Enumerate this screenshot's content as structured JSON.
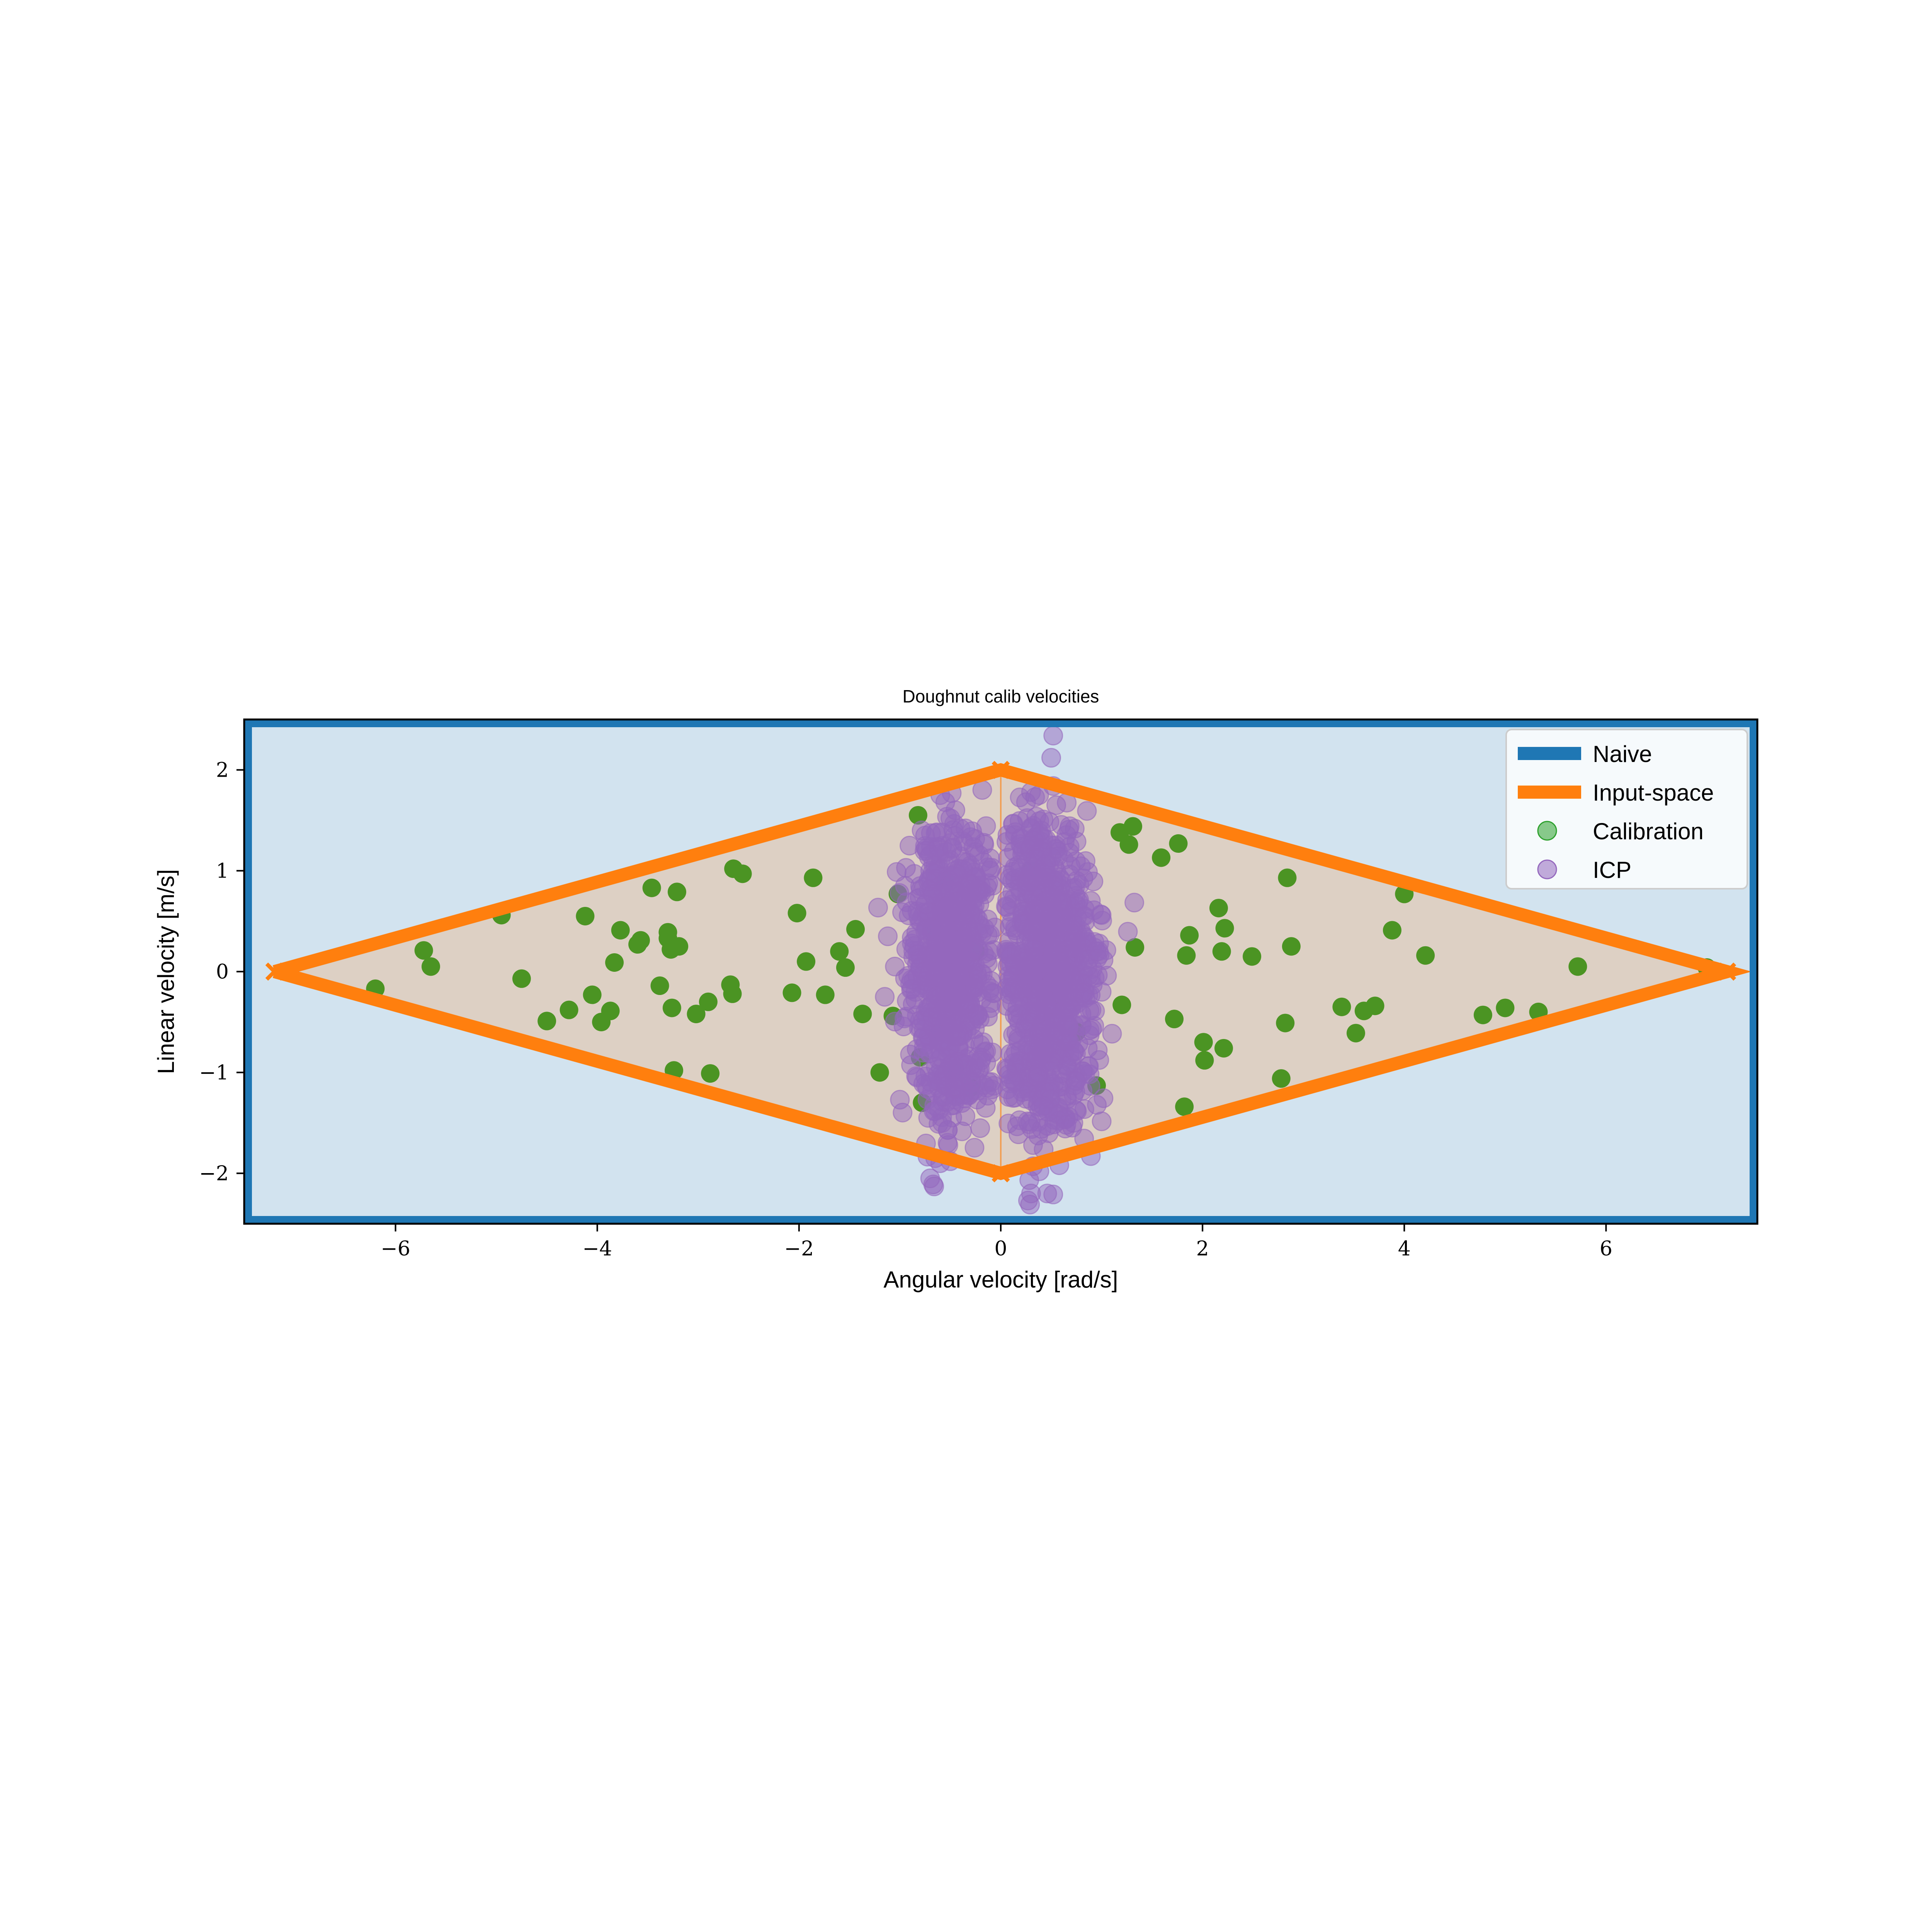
{
  "chart_data": {
    "type": "scatter",
    "title": "Doughnut calib velocities",
    "xlabel": "Angular velocity [rad/s]",
    "ylabel": "Linear velocity [m/s]",
    "xlim": [
      -7.5,
      7.5
    ],
    "ylim": [
      -2.5,
      2.5
    ],
    "xticks": [
      -6,
      -4,
      -2,
      0,
      2,
      4,
      6
    ],
    "xtick_labels": [
      "−6",
      "−4",
      "−2",
      "0",
      "2",
      "4",
      "6"
    ],
    "yticks": [
      -2,
      -1,
      0,
      1,
      2
    ],
    "ytick_labels": [
      "−2",
      "−1",
      "0",
      "1",
      "2"
    ],
    "grid": false,
    "legend_position": "top-right",
    "colors": {
      "naive": "#1f77b4",
      "naive_fill": "#d2e3ef",
      "input_space": "#ff7f0e",
      "input_fill": "#ddd0c4",
      "calibration": "#4b9423",
      "icp": "#9467bd",
      "icp_overlap": "#a56b9c"
    },
    "legend": [
      {
        "label": "Naive",
        "kind": "line",
        "color": "#1f77b4"
      },
      {
        "label": "Input-space",
        "kind": "line",
        "color": "#ff7f0e"
      },
      {
        "label": "Calibration",
        "kind": "marker",
        "color": "#2ca02c"
      },
      {
        "label": "ICP",
        "kind": "marker",
        "color": "#9467bd"
      }
    ],
    "naive_region": {
      "x": [
        -7.5,
        7.5
      ],
      "y": [
        -2.5,
        2.5
      ]
    },
    "input_space_region": [
      [
        -7.2,
        0
      ],
      [
        0,
        2
      ],
      [
        7.2,
        0
      ],
      [
        0,
        -2
      ],
      [
        -7.2,
        0
      ]
    ],
    "calibration": [
      [
        -6.2,
        -0.17
      ],
      [
        -5.72,
        0.21
      ],
      [
        -5.65,
        0.05
      ],
      [
        -4.95,
        0.56
      ],
      [
        -4.75,
        -0.07
      ],
      [
        -4.5,
        -0.49
      ],
      [
        -4.28,
        -0.38
      ],
      [
        -4.12,
        0.55
      ],
      [
        -4.05,
        -0.23
      ],
      [
        -3.96,
        -0.5
      ],
      [
        -3.87,
        -0.39
      ],
      [
        -3.83,
        0.09
      ],
      [
        -3.77,
        0.41
      ],
      [
        -3.6,
        0.27
      ],
      [
        -3.57,
        0.31
      ],
      [
        -3.46,
        0.83
      ],
      [
        -3.38,
        -0.14
      ],
      [
        -3.3,
        0.39
      ],
      [
        -3.3,
        0.33
      ],
      [
        -3.27,
        0.22
      ],
      [
        -3.26,
        -0.36
      ],
      [
        -3.24,
        -0.98
      ],
      [
        -3.21,
        0.79
      ],
      [
        -3.19,
        0.25
      ],
      [
        -3.02,
        -0.42
      ],
      [
        -2.9,
        -0.3
      ],
      [
        -2.88,
        -1.01
      ],
      [
        -2.68,
        -0.13
      ],
      [
        -2.66,
        -0.22
      ],
      [
        -2.65,
        1.02
      ],
      [
        -2.56,
        0.97
      ],
      [
        -2.07,
        -0.21
      ],
      [
        -2.02,
        0.58
      ],
      [
        -1.93,
        0.1
      ],
      [
        -1.86,
        0.93
      ],
      [
        -1.74,
        -0.23
      ],
      [
        -1.6,
        0.2
      ],
      [
        -1.54,
        0.04
      ],
      [
        -1.44,
        0.42
      ],
      [
        -1.37,
        -0.42
      ],
      [
        -1.2,
        -1.0
      ],
      [
        -1.07,
        -0.44
      ],
      [
        -1.02,
        0.77
      ],
      [
        -0.82,
        1.55
      ],
      [
        -0.8,
        -0.85
      ],
      [
        -0.78,
        -1.3
      ],
      [
        -0.67,
        0.4
      ],
      [
        -0.6,
        -0.6
      ],
      [
        -0.55,
        0.9
      ],
      [
        -0.45,
        -0.98
      ],
      [
        -0.3,
        -1.15
      ],
      [
        -0.25,
        0.2
      ],
      [
        0.3,
        1.0
      ],
      [
        0.45,
        0.5
      ],
      [
        0.75,
        -0.6
      ],
      [
        0.95,
        -1.13
      ],
      [
        1.18,
        1.38
      ],
      [
        1.2,
        -0.33
      ],
      [
        1.27,
        1.26
      ],
      [
        1.31,
        1.44
      ],
      [
        1.33,
        0.24
      ],
      [
        1.59,
        1.13
      ],
      [
        1.72,
        -0.47
      ],
      [
        1.76,
        1.27
      ],
      [
        1.82,
        -1.34
      ],
      [
        1.84,
        0.16
      ],
      [
        1.87,
        0.36
      ],
      [
        2.01,
        -0.7
      ],
      [
        2.02,
        -0.88
      ],
      [
        2.16,
        0.63
      ],
      [
        2.19,
        0.2
      ],
      [
        2.22,
        0.43
      ],
      [
        2.21,
        -0.76
      ],
      [
        2.49,
        0.15
      ],
      [
        2.78,
        -1.06
      ],
      [
        2.82,
        -0.51
      ],
      [
        2.84,
        0.93
      ],
      [
        2.88,
        0.25
      ],
      [
        3.38,
        -0.35
      ],
      [
        3.52,
        -0.61
      ],
      [
        3.6,
        -0.39
      ],
      [
        3.71,
        -0.34
      ],
      [
        3.88,
        0.41
      ],
      [
        4.0,
        0.77
      ],
      [
        4.21,
        0.16
      ],
      [
        4.78,
        -0.43
      ],
      [
        5.0,
        -0.36
      ],
      [
        5.33,
        -0.4
      ],
      [
        5.72,
        0.05
      ],
      [
        7.0,
        0.04
      ]
    ],
    "icp": {
      "clusters": [
        {
          "cx": -0.52,
          "cy": 0.0,
          "sx": 0.2,
          "sy": 0.55,
          "n": 620
        },
        {
          "cx": 0.48,
          "cy": 0.0,
          "sx": 0.24,
          "sy": 0.55,
          "n": 700
        },
        {
          "cx": -0.45,
          "cy": 0.95,
          "sx": 0.2,
          "sy": 0.25,
          "n": 90
        },
        {
          "cx": 0.35,
          "cy": 1.0,
          "sx": 0.2,
          "sy": 0.3,
          "n": 110
        },
        {
          "cx": -0.45,
          "cy": -1.1,
          "sx": 0.18,
          "sy": 0.25,
          "n": 90
        },
        {
          "cx": 0.45,
          "cy": -1.15,
          "sx": 0.2,
          "sy": 0.25,
          "n": 110
        }
      ],
      "outliers": [
        [
          0.52,
          2.34
        ],
        [
          0.5,
          2.12
        ],
        [
          0.52,
          1.84
        ],
        [
          0.55,
          1.65
        ],
        [
          0.3,
          1.78
        ],
        [
          0.34,
          1.73
        ],
        [
          0.38,
          1.75
        ],
        [
          0.25,
          1.68
        ],
        [
          -0.55,
          1.68
        ],
        [
          -0.5,
          1.52
        ],
        [
          -0.58,
          1.38
        ],
        [
          -0.35,
          1.42
        ],
        [
          -0.6,
          1.75
        ],
        [
          -0.45,
          1.6
        ],
        [
          0.4,
          1.4
        ],
        [
          -1.0,
          -1.27
        ],
        [
          -0.72,
          -1.45
        ],
        [
          -0.58,
          -1.5
        ],
        [
          -0.52,
          -1.72
        ],
        [
          -0.65,
          -1.85
        ],
        [
          -0.7,
          -2.05
        ],
        [
          -0.67,
          -2.11
        ],
        [
          -0.66,
          -2.13
        ],
        [
          -0.5,
          -1.88
        ],
        [
          -0.6,
          -1.9
        ],
        [
          0.32,
          -1.72
        ],
        [
          0.32,
          -1.93
        ],
        [
          0.58,
          -1.92
        ],
        [
          0.3,
          -2.2
        ],
        [
          0.27,
          -2.27
        ],
        [
          0.29,
          -2.31
        ],
        [
          0.46,
          -2.2
        ],
        [
          0.52,
          -2.21
        ],
        [
          0.65,
          -1.52
        ],
        [
          0.72,
          -1.5
        ],
        [
          -0.83,
          -1.05
        ],
        [
          0.83,
          0.55
        ],
        [
          0.95,
          0.2
        ],
        [
          1.0,
          -0.2
        ],
        [
          -1.05,
          0.05
        ],
        [
          -1.15,
          -0.25
        ],
        [
          -1.12,
          0.35
        ],
        [
          -0.95,
          0.85
        ]
      ]
    }
  }
}
